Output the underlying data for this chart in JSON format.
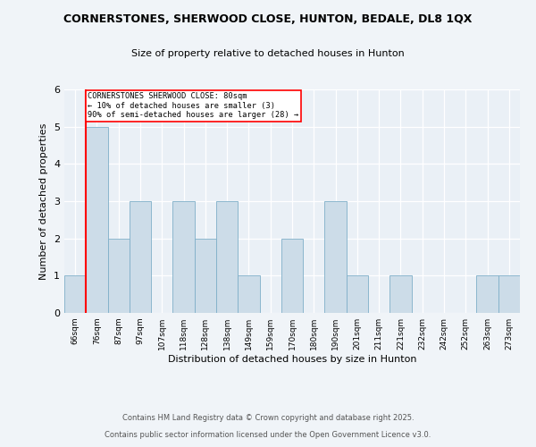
{
  "title1": "CORNERSTONES, SHERWOOD CLOSE, HUNTON, BEDALE, DL8 1QX",
  "title2": "Size of property relative to detached houses in Hunton",
  "xlabel": "Distribution of detached houses by size in Hunton",
  "ylabel": "Number of detached properties",
  "bin_labels": [
    "66sqm",
    "76sqm",
    "87sqm",
    "97sqm",
    "107sqm",
    "118sqm",
    "128sqm",
    "138sqm",
    "149sqm",
    "159sqm",
    "170sqm",
    "180sqm",
    "190sqm",
    "201sqm",
    "211sqm",
    "221sqm",
    "232sqm",
    "242sqm",
    "252sqm",
    "263sqm",
    "273sqm"
  ],
  "bar_heights": [
    1,
    5,
    2,
    3,
    0,
    3,
    2,
    3,
    1,
    0,
    2,
    0,
    3,
    1,
    0,
    1,
    0,
    0,
    0,
    1,
    1
  ],
  "bar_color": "#ccdce8",
  "bar_edgecolor": "#7fafc8",
  "property_line_x_label": "76sqm",
  "property_line_label": "CORNERSTONES SHERWOOD CLOSE: 80sqm",
  "annotation_line1": "← 10% of detached houses are smaller (3)",
  "annotation_line2": "90% of semi-detached houses are larger (28) →",
  "ylim": [
    0,
    6
  ],
  "yticks": [
    0,
    1,
    2,
    3,
    4,
    5,
    6
  ],
  "footer1": "Contains HM Land Registry data © Crown copyright and database right 2025.",
  "footer2": "Contains public sector information licensed under the Open Government Licence v3.0.",
  "background_color": "#f0f4f8",
  "plot_background": "#eaf0f6"
}
